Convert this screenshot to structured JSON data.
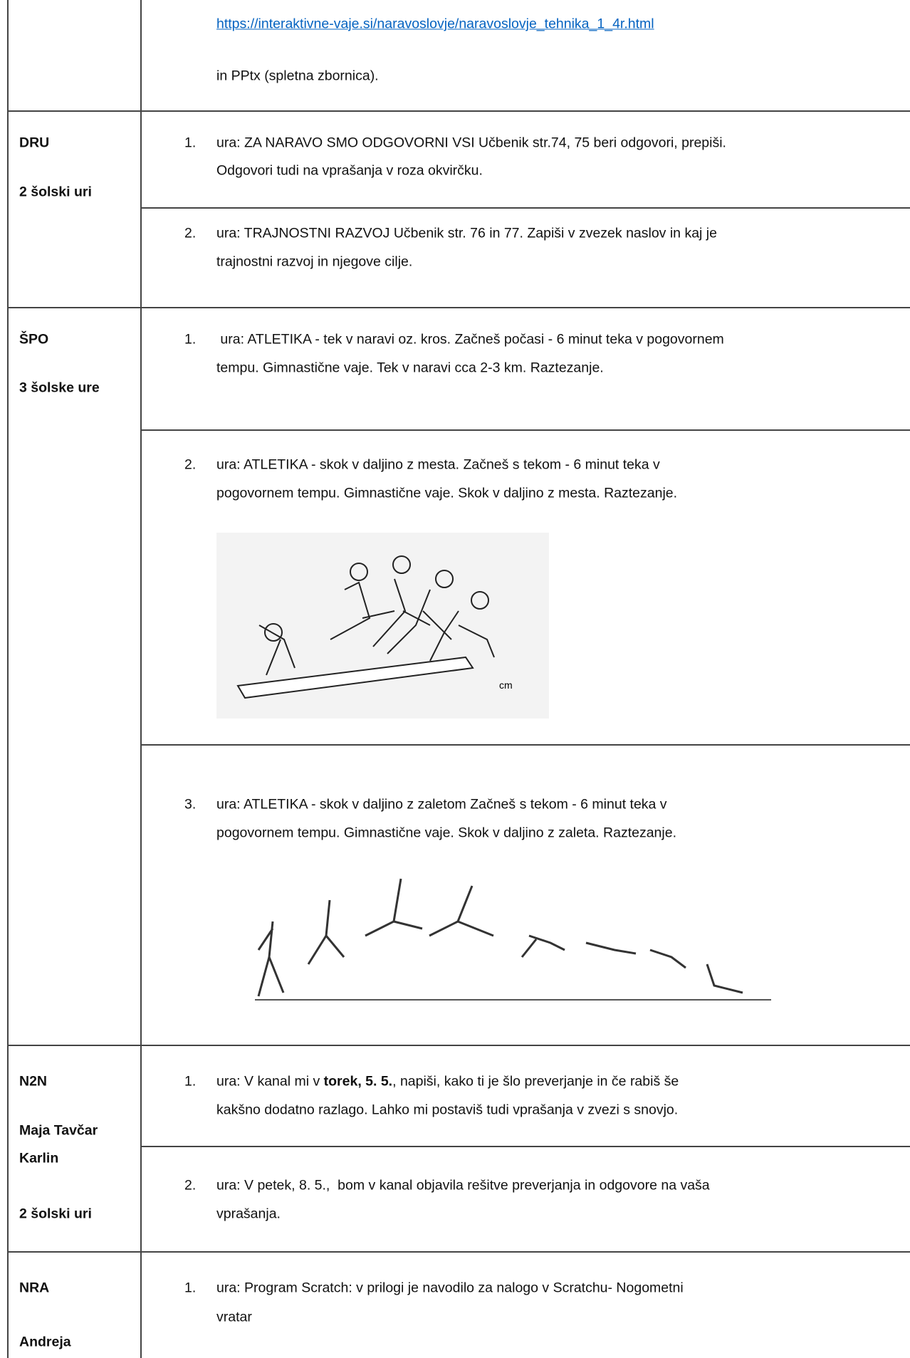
{
  "rows": [
    {
      "left": [],
      "items": [
        {
          "lines": [
            "https://interaktivne-vaje.si/naravoslovje/naravoslovje_tehnika_1_4r.html"
          ]
        },
        {
          "lines": [
            "in PPtx (spletna zbornica)."
          ]
        }
      ]
    },
    {
      "left": [
        "DRU",
        "2 šolski uri"
      ],
      "items": [
        {
          "num": "1.",
          "lines": [
            "ura: ZA NARAVO SMO ODGOVORNI VSI Učbenik str.74, 75 beri odgovori, prepiši.",
            "Odgovori tudi na vprašanja v roza okvirčku."
          ]
        },
        {
          "num": "2.",
          "lines": [
            "ura: TRAJNOSTNI RAZVOJ Učbenik str. 76 in 77. Zapiši v zvezek naslov in kaj je",
            "trajnostni razvoj in njegove cilje."
          ]
        }
      ]
    },
    {
      "left": [
        "ŠPO",
        "3 šolske ure"
      ],
      "items": [
        {
          "num": "1.",
          "lines": [
            " ura: ATLETIKA - tek v naravi oz. kros. Začneš počasi - 6 minut teka v pogovornem",
            "tempu. Gimnastične vaje. Tek v naravi cca 2-3 km. Raztezanje."
          ]
        },
        {
          "num": "2.",
          "lines": [
            "ura: ATLETIKA - skok v daljino z mesta. Začneš s tekom - 6 minut teka v",
            "pogovornem tempu. Gimnastične vaje. Skok v daljino z mesta. Raztezanje."
          ],
          "figure_label": "cm"
        },
        {
          "num": "3.",
          "lines": [
            "ura: ATLETIKA - skok v daljino z zaletom Začneš s tekom - 6 minut teka v",
            "pogovornem tempu. Gimnastične vaje. Skok v daljino z zaleta. Raztezanje."
          ]
        }
      ]
    },
    {
      "left": [
        "N2N",
        "Maja Tavčar",
        "Karlin",
        "2 šolski uri"
      ],
      "items": [
        {
          "num": "1.",
          "first": {
            "pre": "ura: V kanal mi v ",
            "bold": "torek, 5. 5.",
            "post": ", napiši, kako ti je šlo preverjanje in če rabiš še"
          },
          "lines": [
            "kakšno dodatno razlago. Lahko mi postaviš tudi vprašanja v zvezi s snovjo."
          ]
        },
        {
          "num": "2.",
          "lines": [
            "ura: V petek, 8. 5.,  bom v kanal objavila rešitve preverjanja in odgovore na vaša",
            "vprašanja."
          ]
        }
      ]
    },
    {
      "left": [
        "NRA",
        "Andreja"
      ],
      "items": [
        {
          "num": "1.",
          "lines": [
            "ura: Program Scratch: v prilogi je navodilo za nalogo v Scratchu- Nogometni",
            "vratar"
          ]
        }
      ]
    }
  ]
}
